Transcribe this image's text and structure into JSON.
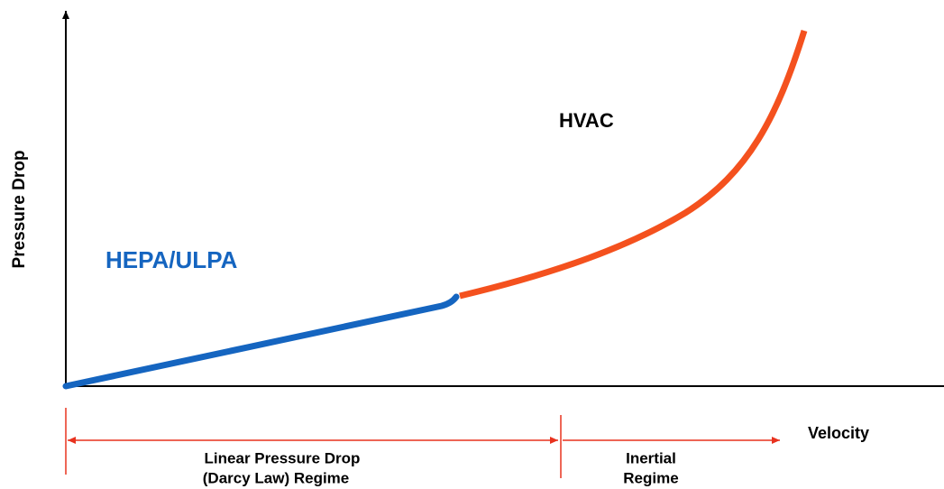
{
  "axes": {
    "y_label": "Pressure Drop",
    "x_label": "Velocity"
  },
  "curves": {
    "hepa_label": "HEPA/ULPA",
    "hvac_label": "HVAC"
  },
  "regimes": [
    {
      "lines": [
        "Linear Pressure Drop",
        "(Darcy Law) Regime"
      ]
    },
    {
      "lines": [
        "Inertial",
        "Regime"
      ]
    }
  ]
}
